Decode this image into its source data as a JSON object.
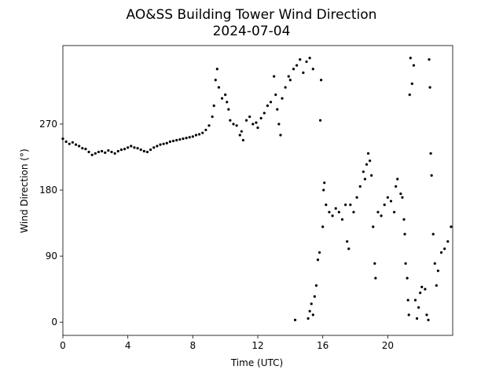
{
  "chart_data": {
    "type": "scatter",
    "title": "AO&SS Building Tower Wind Direction",
    "subtitle": "2024-07-04",
    "x_label": "Time (UTC)",
    "y_label": "Wind Direction (°)",
    "color": "#000000",
    "xlim": [
      0,
      24
    ],
    "ylim": [
      -18,
      377
    ],
    "xticks": [
      0,
      4,
      8,
      12,
      16,
      20
    ],
    "yticks": [
      0,
      90,
      180,
      270
    ],
    "grid": false,
    "x": [
      0,
      0.2,
      0.4,
      0.6,
      0.8,
      1,
      1.2,
      1.4,
      1.6,
      1.8,
      2,
      2.2,
      2.4,
      2.6,
      2.8,
      3,
      3.2,
      3.4,
      3.6,
      3.8,
      4,
      4.2,
      4.4,
      4.6,
      4.8,
      5,
      5.2,
      5.4,
      5.6,
      5.8,
      6,
      6.2,
      6.4,
      6.6,
      6.8,
      7,
      7.2,
      7.4,
      7.6,
      7.8,
      8,
      8.2,
      8.4,
      8.6,
      8.8,
      9,
      9.2,
      9.3,
      9.4,
      9.5,
      9.6,
      9.8,
      10,
      10.1,
      10.2,
      10.3,
      10.5,
      10.7,
      10.9,
      11,
      11.1,
      11.3,
      11.5,
      11.7,
      11.9,
      12,
      12.2,
      12.4,
      12.6,
      12.8,
      13,
      13.1,
      13.2,
      13.3,
      13.4,
      13.5,
      13.7,
      13.9,
      14,
      14.2,
      14.4,
      14.6,
      14.8,
      15,
      15.2,
      15.4,
      14.3,
      15.1,
      15.2,
      15.3,
      15.4,
      15.5,
      15.6,
      15.7,
      15.8,
      15.9,
      15.85,
      16,
      16.05,
      16.1,
      16.2,
      16.4,
      16.6,
      16.8,
      17,
      17.2,
      17.4,
      17.5,
      17.6,
      17.7,
      17.9,
      18.1,
      18.3,
      18.5,
      18.6,
      18.7,
      18.8,
      18.9,
      19,
      19.1,
      19.2,
      19.25,
      19.4,
      19.6,
      19.8,
      20,
      20.2,
      20.4,
      20.5,
      20.6,
      20.8,
      20.9,
      21,
      21.05,
      21.1,
      21.2,
      21.25,
      21.3,
      21.35,
      21.4,
      21.5,
      21.6,
      21.7,
      21.8,
      21.9,
      22,
      22.1,
      22.3,
      22.4,
      22.5,
      22.55,
      22.6,
      22.65,
      22.7,
      22.8,
      22.9,
      23,
      23.1,
      23.3,
      23.5,
      23.7,
      23.9
    ],
    "values": [
      250,
      246,
      243,
      245,
      242,
      240,
      237,
      236,
      232,
      228,
      230,
      232,
      233,
      231,
      234,
      232,
      230,
      233,
      235,
      236,
      238,
      240,
      238,
      237,
      235,
      233,
      232,
      235,
      238,
      240,
      242,
      243,
      244,
      246,
      247,
      248,
      249,
      250,
      251,
      252,
      253,
      255,
      256,
      258,
      262,
      268,
      280,
      295,
      330,
      345,
      320,
      305,
      310,
      300,
      290,
      275,
      270,
      268,
      255,
      260,
      248,
      275,
      280,
      270,
      272,
      265,
      278,
      285,
      295,
      300,
      335,
      310,
      290,
      270,
      255,
      305,
      320,
      335,
      330,
      345,
      350,
      358,
      340,
      355,
      360,
      345,
      3,
      5,
      15,
      25,
      10,
      35,
      50,
      85,
      95,
      330,
      275,
      130,
      180,
      190,
      160,
      150,
      145,
      155,
      150,
      140,
      160,
      110,
      100,
      160,
      150,
      170,
      185,
      205,
      195,
      215,
      230,
      220,
      200,
      130,
      80,
      60,
      150,
      145,
      160,
      170,
      165,
      150,
      185,
      195,
      175,
      170,
      140,
      120,
      80,
      60,
      30,
      10,
      310,
      360,
      325,
      350,
      30,
      5,
      20,
      40,
      48,
      45,
      10,
      3,
      358,
      320,
      230,
      200,
      120,
      80,
      50,
      70,
      95,
      100,
      110,
      130
    ]
  }
}
